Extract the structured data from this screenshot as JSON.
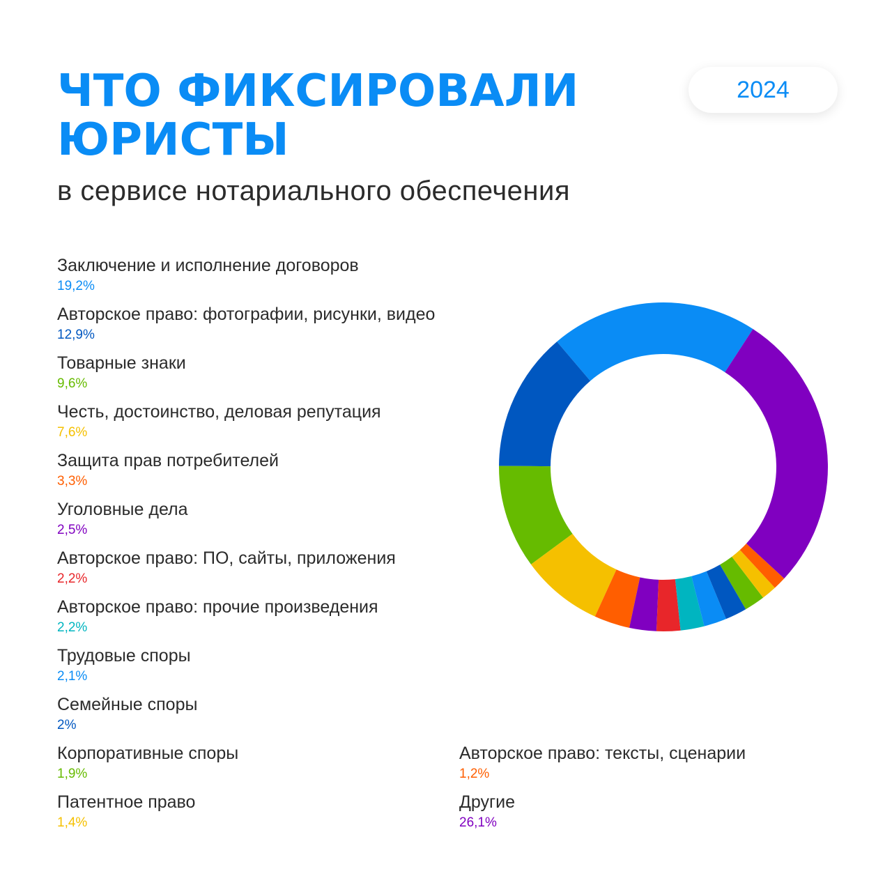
{
  "header": {
    "title_line1": "ЧТО ФИКСИРОВАЛИ",
    "title_line2": "ЮРИСТЫ",
    "subtitle": "в сервисе нотариального обеспечения",
    "year": "2024"
  },
  "colors": {
    "title": "#0a8cf5",
    "text": "#2b2b2b"
  },
  "legend": [
    {
      "label": "Заключение и исполнение договоров",
      "value": "19,2%",
      "color": "#0a8cf5"
    },
    {
      "label": "Авторское право: фотографии, рисунки, видео",
      "value": "12,9%",
      "color": "#0057c0"
    },
    {
      "label": "Товарные знаки",
      "value": "9,6%",
      "color": "#66bb00"
    },
    {
      "label": "Честь, достоинство, деловая репутация",
      "value": "7,6%",
      "color": "#f5c000"
    },
    {
      "label": "Защита прав потребителей",
      "value": "3,3%",
      "color": "#ff5e00"
    },
    {
      "label": "Уголовные дела",
      "value": "2,5%",
      "color": "#8000c0"
    },
    {
      "label": "Авторское право: ПО, сайты, приложения",
      "value": "2,2%",
      "color": "#e8262a"
    },
    {
      "label": "Авторское право: прочие произведения",
      "value": "2,2%",
      "color": "#00b5c0"
    },
    {
      "label": "Трудовые споры",
      "value": "2,1%",
      "color": "#0a8cf5"
    },
    {
      "label": "Семейные споры",
      "value": "2%",
      "color": "#0057c0"
    },
    {
      "label": "Корпоративные споры",
      "value": "1,9%",
      "color": "#66bb00"
    },
    {
      "label": "Патентное право",
      "value": "1,4%",
      "color": "#f5c000"
    },
    {
      "label": "Авторское право: тексты, сценарии",
      "value": "1,2%",
      "color": "#ff5e00"
    },
    {
      "label": "Другие",
      "value": "26,1%",
      "color": "#8000c0"
    }
  ],
  "chart_data": {
    "type": "pie",
    "style": "donut",
    "title": "ЧТО ФИКСИРОВАЛИ ЮРИСТЫ",
    "subtitle": "в сервисе нотариального обеспечения",
    "categories": [
      "Заключение и исполнение договоров",
      "Авторское право: фотографии, рисунки, видео",
      "Товарные знаки",
      "Честь, достоинство, деловая репутация",
      "Защита прав потребителей",
      "Уголовные дела",
      "Авторское право: ПО, сайты, приложения",
      "Авторское право: прочие произведения",
      "Трудовые споры",
      "Семейные споры",
      "Корпоративные споры",
      "Патентное право",
      "Авторское право: тексты, сценарии",
      "Другие"
    ],
    "values": [
      19.2,
      12.9,
      9.6,
      7.6,
      3.3,
      2.5,
      2.2,
      2.2,
      2.1,
      2.0,
      1.9,
      1.4,
      1.2,
      26.1
    ],
    "colors": [
      "#0a8cf5",
      "#0057c0",
      "#66bb00",
      "#f5c000",
      "#ff5e00",
      "#8000c0",
      "#e8262a",
      "#00b5c0",
      "#0a8cf5",
      "#0057c0",
      "#66bb00",
      "#f5c000",
      "#ff5e00",
      "#8000c0"
    ],
    "direction": "counterclockwise",
    "legend_position": "left"
  }
}
